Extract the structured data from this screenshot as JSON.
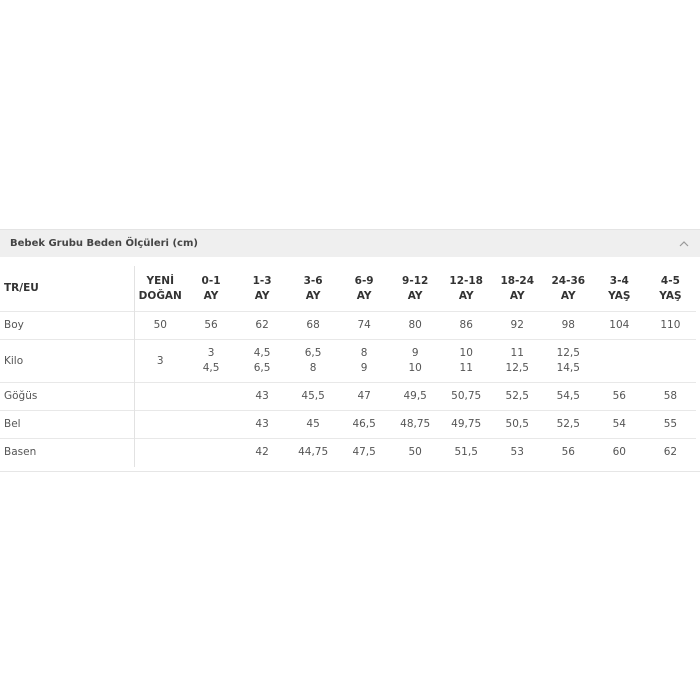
{
  "panel": {
    "title": "Bebek Grubu Beden Ölçüleri (cm)"
  },
  "table": {
    "corner": "TR/EU",
    "columns": [
      [
        "YENİ",
        "DOĞAN"
      ],
      [
        "0-1",
        "AY"
      ],
      [
        "1-3",
        "AY"
      ],
      [
        "3-6",
        "AY"
      ],
      [
        "6-9",
        "AY"
      ],
      [
        "9-12",
        "AY"
      ],
      [
        "12-18",
        "AY"
      ],
      [
        "18-24",
        "AY"
      ],
      [
        "24-36",
        "AY"
      ],
      [
        "3-4",
        "YAŞ"
      ],
      [
        "4-5",
        "YAŞ"
      ]
    ],
    "rows": [
      {
        "label": "Boy",
        "cells": [
          "50",
          "56",
          "62",
          "68",
          "74",
          "80",
          "86",
          "92",
          "98",
          "104",
          "110"
        ]
      },
      {
        "label": "Kilo",
        "cells": [
          "3",
          [
            "3",
            "4,5"
          ],
          [
            "4,5",
            "6,5"
          ],
          [
            "6,5",
            "8"
          ],
          [
            "8",
            "9"
          ],
          [
            "9",
            "10"
          ],
          [
            "10",
            "11"
          ],
          [
            "11",
            "12,5"
          ],
          [
            "12,5",
            "14,5"
          ],
          null,
          null
        ]
      },
      {
        "label": "Göğüs",
        "cells": [
          null,
          null,
          "43",
          "45,5",
          "47",
          "49,5",
          "50,75",
          "52,5",
          "54,5",
          "56",
          "58"
        ]
      },
      {
        "label": "Bel",
        "cells": [
          null,
          null,
          "43",
          "45",
          "46,5",
          "48,75",
          "49,75",
          "50,5",
          "52,5",
          "54",
          "55"
        ]
      },
      {
        "label": "Basen",
        "cells": [
          null,
          null,
          "42",
          "44,75",
          "47,5",
          "50",
          "51,5",
          "53",
          "56",
          "60",
          "62"
        ]
      }
    ]
  }
}
